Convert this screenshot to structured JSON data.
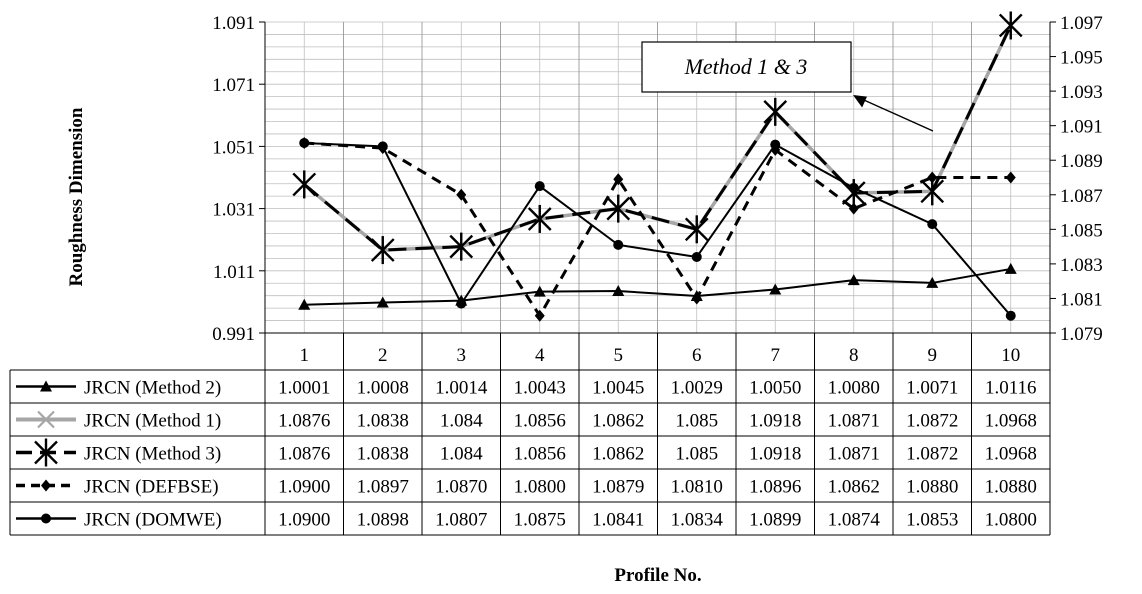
{
  "chart_data": {
    "type": "line",
    "xlabel": "Profile No.",
    "ylabel": "Roughness Dimension",
    "categories": [
      "1",
      "2",
      "3",
      "4",
      "5",
      "6",
      "7",
      "8",
      "9",
      "10"
    ],
    "y_left": {
      "min": 0.991,
      "max": 1.091,
      "ticks": [
        "0.991",
        "1.011",
        "1.031",
        "1.051",
        "1.071",
        "1.091"
      ]
    },
    "y_right": {
      "min": 1.079,
      "max": 1.097,
      "ticks": [
        "1.079",
        "1.081",
        "1.083",
        "1.085",
        "1.087",
        "1.089",
        "1.091",
        "1.093",
        "1.095",
        "1.097"
      ]
    },
    "grid": true,
    "legend_placement": "data-table-below",
    "annotation": {
      "text": "Method 1 & 3"
    },
    "series": [
      {
        "name": "JRCN (Method 2)",
        "axis": "left",
        "marker": "triangle",
        "color": "#000000",
        "dash": "solid",
        "values": [
          1.0001,
          1.0008,
          1.0014,
          1.0043,
          1.0045,
          1.0029,
          1.005,
          1.008,
          1.0071,
          1.0116
        ],
        "labels": [
          "1.0001",
          "1.0008",
          "1.0014",
          "1.0043",
          "1.0045",
          "1.0029",
          "1.0050",
          "1.0080",
          "1.0071",
          "1.0116"
        ]
      },
      {
        "name": "JRCN (Method 1)",
        "axis": "right",
        "marker": "x",
        "color": "#a6a6a6",
        "dash": "solid",
        "values": [
          1.0876,
          1.0838,
          1.084,
          1.0856,
          1.0862,
          1.085,
          1.0918,
          1.0871,
          1.0872,
          1.0968
        ],
        "labels": [
          "1.0876",
          "1.0838",
          "1.084",
          "1.0856",
          "1.0862",
          "1.085",
          "1.0918",
          "1.0871",
          "1.0872",
          "1.0968"
        ]
      },
      {
        "name": "JRCN (Method 3)",
        "axis": "right",
        "marker": "star",
        "color": "#000000",
        "dash": "longdash",
        "values": [
          1.0876,
          1.0838,
          1.084,
          1.0856,
          1.0862,
          1.085,
          1.0918,
          1.0871,
          1.0872,
          1.0968
        ],
        "labels": [
          "1.0876",
          "1.0838",
          "1.084",
          "1.0856",
          "1.0862",
          "1.085",
          "1.0918",
          "1.0871",
          "1.0872",
          "1.0968"
        ]
      },
      {
        "name": "JRCN (DEFBSE)",
        "axis": "right",
        "marker": "diamond",
        "color": "#000000",
        "dash": "dash",
        "values": [
          1.09,
          1.0897,
          1.087,
          1.08,
          1.0879,
          1.081,
          1.0896,
          1.0862,
          1.088,
          1.088
        ],
        "labels": [
          "1.0900",
          "1.0897",
          "1.0870",
          "1.0800",
          "1.0879",
          "1.0810",
          "1.0896",
          "1.0862",
          "1.0880",
          "1.0880"
        ]
      },
      {
        "name": "JRCN (DOMWE)",
        "axis": "right",
        "marker": "circle",
        "color": "#000000",
        "dash": "solid",
        "values": [
          1.09,
          1.0898,
          1.0807,
          1.0875,
          1.0841,
          1.0834,
          1.0899,
          1.0874,
          1.0853,
          1.08
        ],
        "labels": [
          "1.0900",
          "1.0898",
          "1.0807",
          "1.0875",
          "1.0841",
          "1.0834",
          "1.0899",
          "1.0874",
          "1.0853",
          "1.0800"
        ]
      }
    ]
  }
}
